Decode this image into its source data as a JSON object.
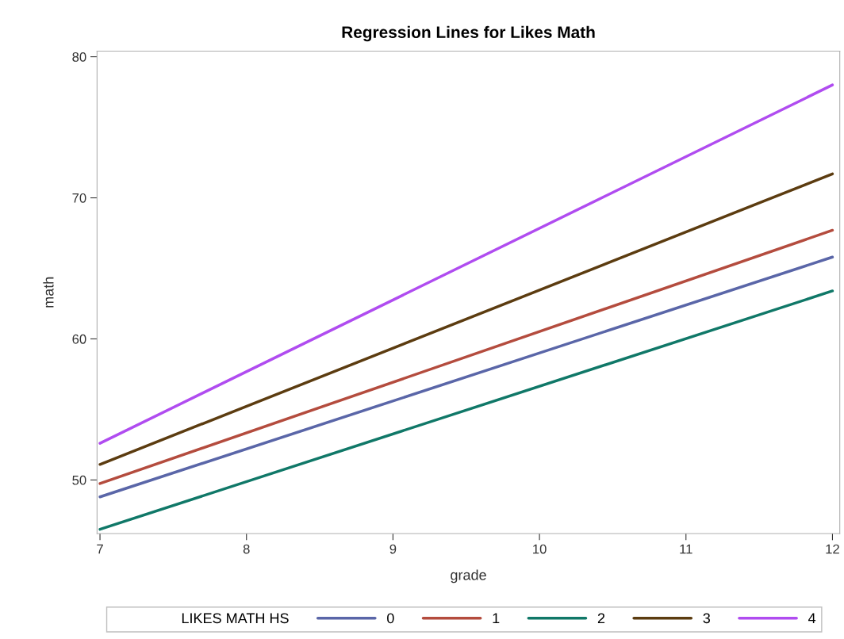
{
  "chart_data": {
    "type": "line",
    "title": "Regression Lines for Likes Math",
    "xlabel": "grade",
    "ylabel": "math",
    "legend_title": "LIKES MATH HS",
    "x": [
      7,
      12
    ],
    "series": [
      {
        "name": "0",
        "color": "#5a66a8",
        "values": [
          48.8,
          65.8
        ]
      },
      {
        "name": "1",
        "color": "#b44c3e",
        "values": [
          49.75,
          67.7
        ]
      },
      {
        "name": "2",
        "color": "#107868",
        "values": [
          46.5,
          63.4
        ]
      },
      {
        "name": "3",
        "color": "#5c3c10",
        "values": [
          51.1,
          71.7
        ]
      },
      {
        "name": "4",
        "color": "#b04cf0",
        "values": [
          52.6,
          78.0
        ]
      }
    ],
    "xlim": [
      6.98,
      12.05
    ],
    "ylim": [
      46.2,
      80.4
    ],
    "xticks": [
      7,
      8,
      9,
      10,
      11,
      12
    ],
    "yticks": [
      50,
      60,
      70,
      80
    ],
    "grid": false,
    "legend": "bottom",
    "marker": "none",
    "line_style": "solid"
  }
}
